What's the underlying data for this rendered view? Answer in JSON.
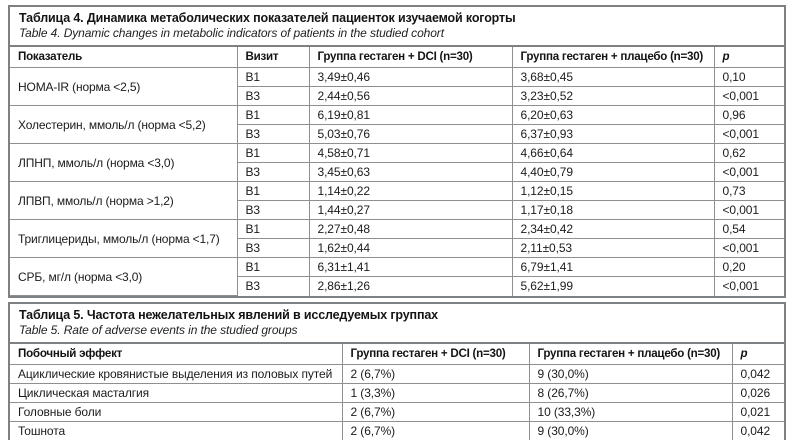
{
  "page": {
    "background": "#ffffff",
    "border_color": "#7e8184",
    "grid_color": "#8d9093",
    "text_color": "#1b1b1b"
  },
  "table4": {
    "title_ru": "Таблица 4. Динамика метаболических показателей пациенток изучаемой когорты",
    "title_en": "Table 4. Dynamic changes in metabolic indicators of patients in the studied cohort",
    "headers": [
      "Показатель",
      "Визит",
      "Группа гестаген + DCI (n=30)",
      "Группа гестаген + плацебо (n=30)",
      "p"
    ],
    "rows": [
      {
        "indicator": "HOMA-IR (норма <2,5)",
        "visits": [
          {
            "visit": "В1",
            "dci": "3,49±0,46",
            "placebo": "3,68±0,45",
            "p": "0,10"
          },
          {
            "visit": "В3",
            "dci": "2,44±0,56",
            "placebo": "3,23±0,52",
            "p": "<0,001"
          }
        ]
      },
      {
        "indicator": "Холестерин, ммоль/л (норма <5,2)",
        "visits": [
          {
            "visit": "В1",
            "dci": "6,19±0,81",
            "placebo": "6,20±0,63",
            "p": "0,96"
          },
          {
            "visit": "В3",
            "dci": "5,03±0,76",
            "placebo": "6,37±0,93",
            "p": "<0,001"
          }
        ]
      },
      {
        "indicator": "ЛПНП, ммоль/л (норма <3,0)",
        "visits": [
          {
            "visit": "В1",
            "dci": "4,58±0,71",
            "placebo": "4,66±0,64",
            "p": "0,62"
          },
          {
            "visit": "В3",
            "dci": "3,45±0,63",
            "placebo": "4,40±0,79",
            "p": "<0,001"
          }
        ]
      },
      {
        "indicator": "ЛПВП, ммоль/л (норма >1,2)",
        "visits": [
          {
            "visit": "В1",
            "dci": "1,14±0,22",
            "placebo": "1,12±0,15",
            "p": "0,73"
          },
          {
            "visit": "В3",
            "dci": "1,44±0,27",
            "placebo": "1,17±0,18",
            "p": "<0,001"
          }
        ]
      },
      {
        "indicator": "Триглицериды, ммоль/л (норма <1,7)",
        "visits": [
          {
            "visit": "В1",
            "dci": "2,27±0,48",
            "placebo": "2,34±0,42",
            "p": "0,54"
          },
          {
            "visit": "В3",
            "dci": "1,62±0,44",
            "placebo": "2,11±0,53",
            "p": "<0,001"
          }
        ]
      },
      {
        "indicator": "СРБ, мг/л (норма <3,0)",
        "visits": [
          {
            "visit": "В1",
            "dci": "6,31±1,41",
            "placebo": "6,79±1,41",
            "p": "0,20"
          },
          {
            "visit": "В3",
            "dci": "2,86±1,26",
            "placebo": "5,62±1,99",
            "p": "<0,001"
          }
        ]
      }
    ]
  },
  "table5": {
    "title_ru": "Таблица 5. Частота нежелательных явлений в исследуемых группах",
    "title_en": "Table 5. Rate of adverse events in the studied groups",
    "headers": [
      "Побочный эффект",
      "Группа гестаген + DCI (n=30)",
      "Группа гестаген + плацебо (n=30)",
      "p"
    ],
    "rows": [
      {
        "effect": "Ациклические кровянистые выделения из половых путей",
        "dci": "2 (6,7%)",
        "placebo": "9 (30,0%)",
        "p": "0,042"
      },
      {
        "effect": "Циклическая масталгия",
        "dci": "1 (3,3%)",
        "placebo": "8 (26,7%)",
        "p": "0,026"
      },
      {
        "effect": "Головные боли",
        "dci": "2 (6,7%)",
        "placebo": "10 (33,3%)",
        "p": "0,021"
      },
      {
        "effect": "Тошнота",
        "dci": "2 (6,7%)",
        "placebo": "9 (30,0%)",
        "p": "0,042"
      }
    ]
  }
}
